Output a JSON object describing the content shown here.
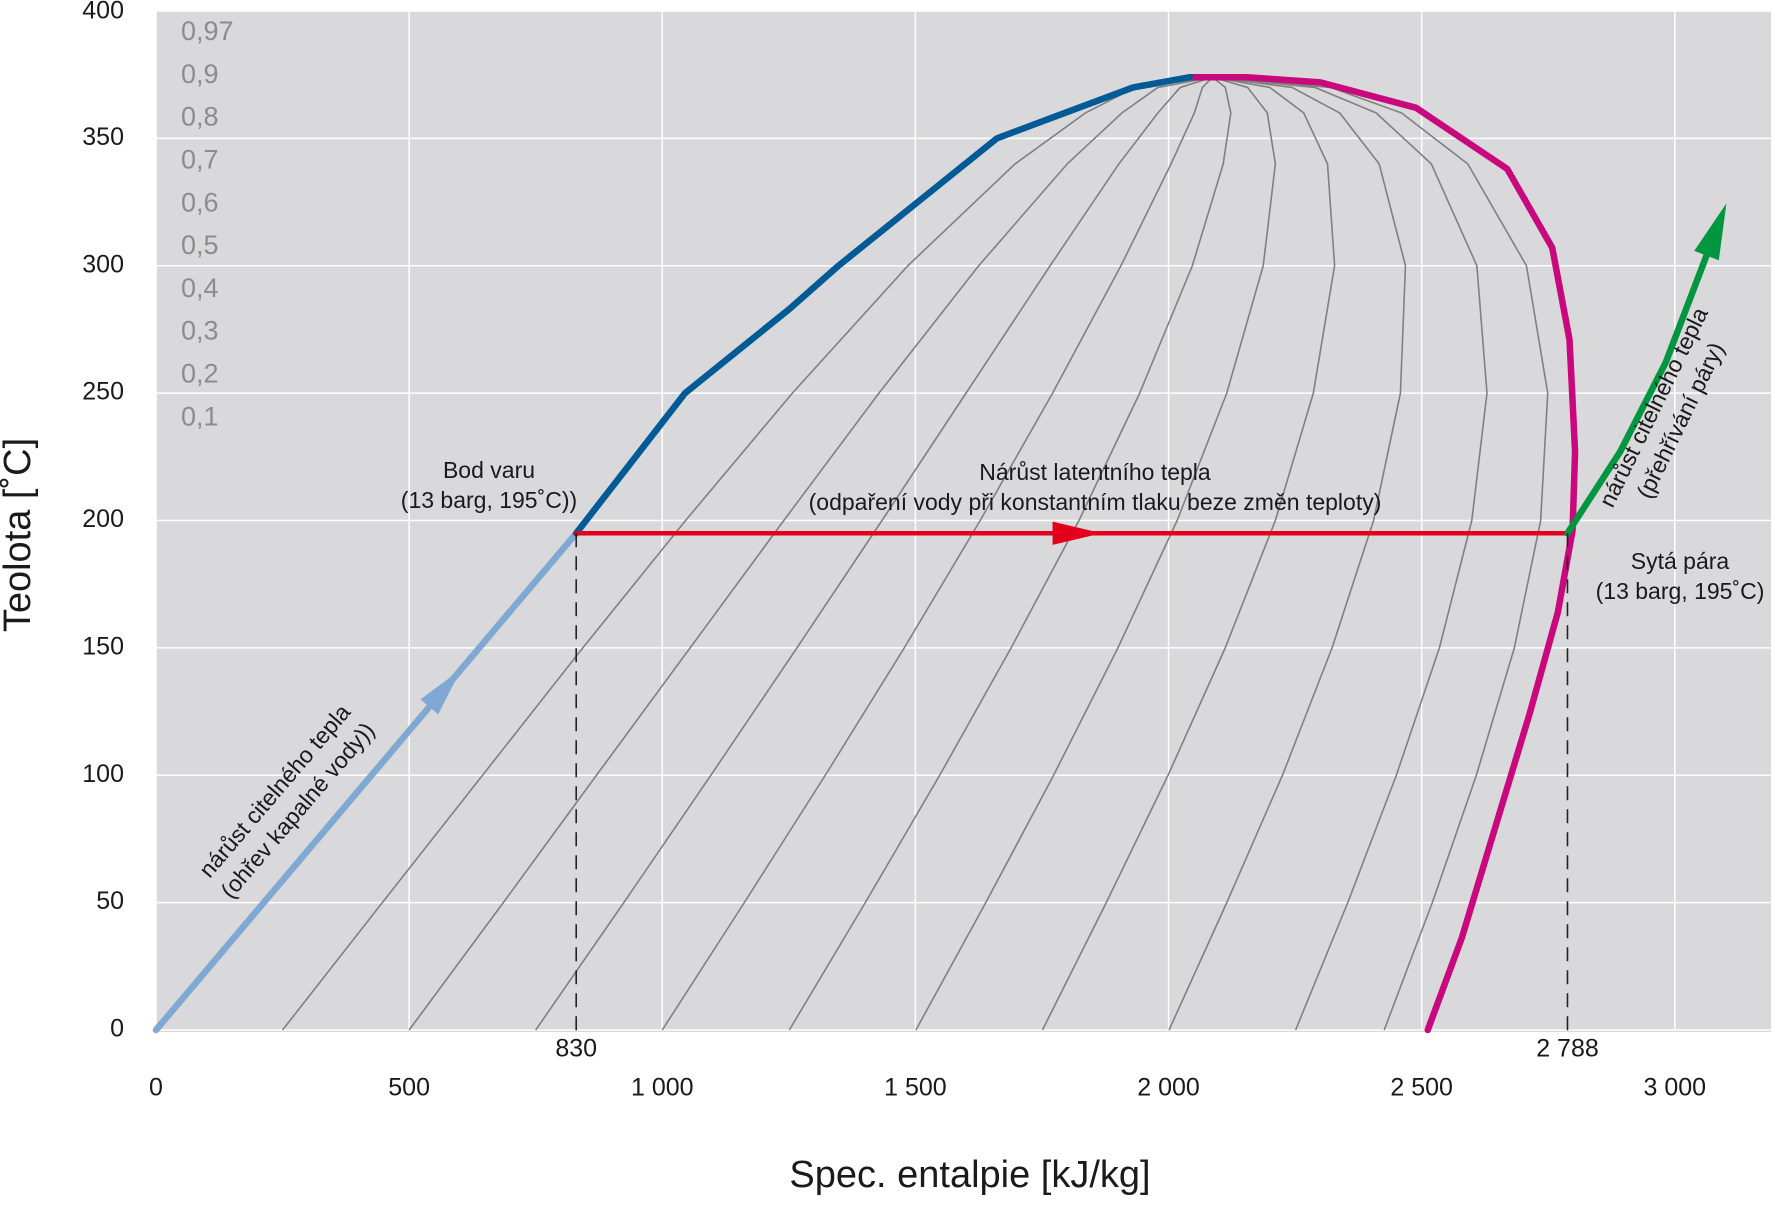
{
  "chart_data": {
    "type": "line",
    "xlabel": "Spec. entalpie [kJ/kg]",
    "ylabel": "Teolota [˚C]",
    "xlim": [
      0,
      3190
    ],
    "ylim": [
      0,
      400
    ],
    "xticks": [
      0,
      500,
      {
        "value": 1000,
        "label": "1 000"
      },
      {
        "value": 1500,
        "label": "1 500"
      },
      {
        "value": 2000,
        "label": "2 000"
      },
      {
        "value": 2500,
        "label": "2 500"
      },
      {
        "value": 3000,
        "label": "3 000"
      }
    ],
    "yticks": [
      0,
      50,
      100,
      150,
      200,
      250,
      300,
      350,
      400
    ],
    "grid": true,
    "xmarkers": [
      830,
      {
        "value": 2788,
        "label": "2 788"
      }
    ],
    "series": [
      {
        "name": "0,97",
        "color": "#808080",
        "x": [
          2426,
          2521,
          2608,
          2683,
          2735,
          2749,
          2707,
          2591,
          2460,
          2320,
          2087
        ],
        "values": [
          0,
          50,
          100,
          150,
          200,
          250,
          300,
          340,
          360,
          370,
          374
        ]
      },
      {
        "name": "0,9",
        "color": "#808080",
        "x": [
          2251,
          2354,
          2450,
          2535,
          2599,
          2629,
          2609,
          2519,
          2410,
          2289,
          2087
        ],
        "values": [
          0,
          50,
          100,
          150,
          200,
          250,
          300,
          340,
          360,
          370,
          374
        ]
      },
      {
        "name": "0,8",
        "color": "#808080",
        "x": [
          2001,
          2115,
          2225,
          2323,
          2405,
          2458,
          2468,
          2416,
          2338,
          2244,
          2087
        ],
        "values": [
          0,
          50,
          100,
          150,
          200,
          250,
          300,
          340,
          360,
          370,
          374
        ]
      },
      {
        "name": "0,7",
        "color": "#808080",
        "x": [
          1751,
          1877,
          1999,
          2112,
          2211,
          2286,
          2328,
          2314,
          2267,
          2200,
          2087
        ],
        "values": [
          0,
          50,
          100,
          150,
          200,
          250,
          300,
          340,
          360,
          370,
          374
        ]
      },
      {
        "name": "0,6",
        "color": "#808080",
        "x": [
          1501,
          1639,
          1773,
          1900,
          2017,
          2115,
          2187,
          2211,
          2195,
          2156,
          2087
        ],
        "values": [
          0,
          50,
          100,
          150,
          200,
          250,
          300,
          340,
          360,
          370,
          374
        ]
      },
      {
        "name": "0,5",
        "color": "#808080",
        "x": [
          1251,
          1401,
          1548,
          1689,
          1823,
          1943,
          2047,
          2108,
          2123,
          2112,
          2087
        ],
        "values": [
          0,
          50,
          100,
          150,
          200,
          250,
          300,
          340,
          360,
          370,
          374
        ]
      },
      {
        "name": "0,4",
        "color": "#808080",
        "x": [
          1000,
          1162,
          1322,
          1478,
          1628,
          1771,
          1906,
          2005,
          2051,
          2067,
          2087
        ],
        "values": [
          0,
          50,
          100,
          150,
          200,
          250,
          300,
          340,
          360,
          370,
          374
        ]
      },
      {
        "name": "0,3",
        "color": "#808080",
        "x": [
          750,
          924,
          1096,
          1266,
          1434,
          1600,
          1766,
          1902,
          1979,
          2023,
          2087
        ],
        "values": [
          0,
          50,
          100,
          150,
          200,
          250,
          300,
          340,
          360,
          370,
          374
        ]
      },
      {
        "name": "0,2",
        "color": "#808080",
        "x": [
          500,
          686,
          870,
          1055,
          1240,
          1428,
          1625,
          1800,
          1908,
          1979,
          2087
        ],
        "values": [
          0,
          50,
          100,
          150,
          200,
          250,
          300,
          340,
          360,
          370,
          374
        ]
      },
      {
        "name": "0,1",
        "color": "#808080",
        "x": [
          250,
          447,
          645,
          843,
          1046,
          1257,
          1485,
          1697,
          1836,
          1934,
          2087
        ],
        "values": [
          0,
          50,
          100,
          150,
          200,
          250,
          300,
          340,
          360,
          370,
          374
        ]
      },
      {
        "color": "#c8087c",
        "x": [
          2042,
          2154,
          2300,
          2489,
          2669,
          2758,
          2792,
          2803,
          2798,
          2769,
          2713,
          2646,
          2579,
          2512
        ],
        "values": [
          374,
          374,
          372,
          362,
          338,
          307,
          271,
          227,
          196,
          164,
          124,
          80,
          36,
          0
        ]
      },
      {
        "color": "#7fa8d2",
        "arrow": "mid",
        "x": [
          0,
          830
        ],
        "values": [
          0,
          195
        ]
      },
      {
        "color": "#005a96",
        "x": [
          830,
          1045,
          1251,
          1348,
          1661,
          1795,
          1930,
          2042
        ],
        "values": [
          195,
          250,
          283,
          300,
          350,
          360,
          370,
          374
        ]
      },
      {
        "color": "#e2001a",
        "arrow": "mid",
        "x": [
          830,
          2788
        ],
        "values": [
          195,
          195
        ]
      },
      {
        "color": "#00953f",
        "arrow": "end",
        "x": [
          2788,
          2892,
          2982,
          3078
        ],
        "values": [
          195,
          227,
          262,
          312
        ]
      }
    ],
    "annotations": [
      {
        "lines": [
          "Bod varu",
          "(13 barg, 195˚C))"
        ]
      },
      {
        "lines": [
          "Nárůst latentního tepla",
          "(odpaření vody při konstantním tlaku beze změn teploty)"
        ]
      },
      {
        "lines": [
          "Sytá pára",
          "(13 barg, 195˚C)"
        ]
      },
      {
        "lines": [
          "nárůst citelného tepla",
          "(ohřev kapalné vody))"
        ]
      },
      {
        "lines": [
          "nárůst citelného tepla",
          "(přehřívání páry)"
        ]
      }
    ]
  }
}
